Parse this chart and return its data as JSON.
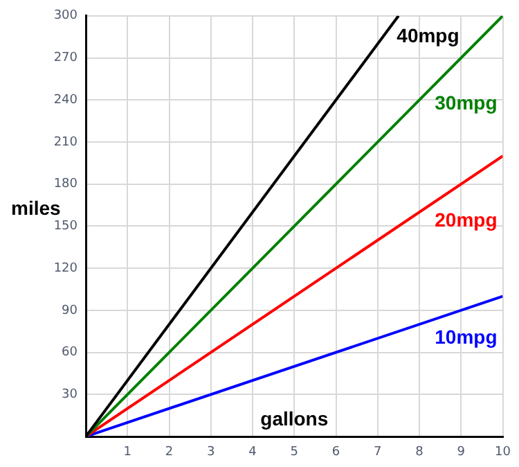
{
  "chart_data": {
    "type": "line",
    "xlabel": "gallons",
    "ylabel": "miles",
    "series": [
      {
        "name": "40mpg",
        "color": "#000000",
        "x": [
          0,
          7.5
        ],
        "values": [
          0,
          300
        ]
      },
      {
        "name": "30mpg",
        "color": "#008000",
        "x": [
          0,
          10
        ],
        "values": [
          0,
          300
        ]
      },
      {
        "name": "20mpg",
        "color": "#ff0000",
        "x": [
          0,
          10
        ],
        "values": [
          0,
          200
        ]
      },
      {
        "name": "10mpg",
        "color": "#0000ff",
        "x": [
          0,
          10
        ],
        "values": [
          0,
          100
        ]
      }
    ],
    "xlim": [
      0,
      10
    ],
    "xticks": [
      {
        "value": 0,
        "label": null
      },
      1,
      2,
      3,
      4,
      5,
      6,
      7,
      8,
      9,
      10
    ],
    "ylim": [
      0,
      300
    ],
    "yticks": [
      {
        "value": 0,
        "label": null
      },
      30,
      60,
      90,
      120,
      150,
      180,
      210,
      240,
      270,
      300
    ],
    "grid": true,
    "legend": false,
    "marker": "none",
    "line_style": "solid"
  }
}
